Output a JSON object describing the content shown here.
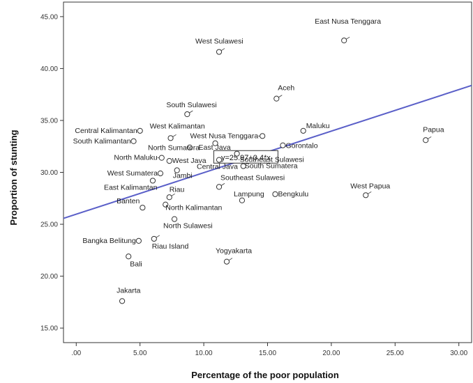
{
  "chart_data": {
    "type": "scatter",
    "xlabel": "Percentage of the poor population",
    "ylabel": "Proportion of stunting",
    "xlim": [
      -1.0,
      31.0
    ],
    "ylim": [
      13.6,
      46.4
    ],
    "xticks": [
      0,
      5,
      10,
      15,
      20,
      25,
      30
    ],
    "xtick_labels": [
      ".00",
      "5.00",
      "10.00",
      "15.00",
      "20.00",
      "25.00",
      "30.00"
    ],
    "yticks": [
      15,
      20,
      25,
      30,
      35,
      40,
      45
    ],
    "ytick_labels": [
      "15.00",
      "20.00",
      "25.00",
      "30.00",
      "35.00",
      "40.00",
      "45.00"
    ],
    "grid": false,
    "fit_line": {
      "intercept": 25.97,
      "slope": 0.4,
      "label": "y=25.97+0.4*x",
      "color": "#5a5fc8"
    },
    "points": [
      {
        "name": "East Nusa Tenggara",
        "x": 21.0,
        "y": 42.7
      },
      {
        "name": "West Sulawesi",
        "x": 11.2,
        "y": 41.6
      },
      {
        "name": "Aceh",
        "x": 15.7,
        "y": 37.1
      },
      {
        "name": "South Sulawesi",
        "x": 8.7,
        "y": 35.6
      },
      {
        "name": "Maluku",
        "x": 17.8,
        "y": 34.0
      },
      {
        "name": "Central Kalimantan",
        "x": 5.0,
        "y": 34.0
      },
      {
        "name": "West Kalimantan",
        "x": 7.4,
        "y": 33.3
      },
      {
        "name": "South Kalimantan",
        "x": 4.5,
        "y": 33.0
      },
      {
        "name": "West Nusa Tenggara",
        "x": 14.6,
        "y": 33.5
      },
      {
        "name": "Papua",
        "x": 27.4,
        "y": 33.1
      },
      {
        "name": "North Sumatera",
        "x": 8.9,
        "y": 32.4
      },
      {
        "name": "East Java",
        "x": 10.9,
        "y": 32.8
      },
      {
        "name": "Gorontalo",
        "x": 16.2,
        "y": 32.6
      },
      {
        "name": "Southeast Sulawesi",
        "x": 12.6,
        "y": 31.8
      },
      {
        "name": "North Maluku",
        "x": 6.7,
        "y": 31.4
      },
      {
        "name": "West Java",
        "x": 7.3,
        "y": 31.1
      },
      {
        "name": "Central Java",
        "x": 11.2,
        "y": 31.2
      },
      {
        "name": "South Sumatera",
        "x": 13.1,
        "y": 30.6
      },
      {
        "name": "Jambi",
        "x": 7.9,
        "y": 30.2
      },
      {
        "name": "West Sumatera",
        "x": 6.6,
        "y": 29.9
      },
      {
        "name": "East Kalimantan",
        "x": 6.0,
        "y": 29.2
      },
      {
        "name": "Southeast Sulawesi",
        "x": 11.2,
        "y": 28.6
      },
      {
        "name": "Lampung",
        "x": 13.0,
        "y": 27.3
      },
      {
        "name": "Bengkulu",
        "x": 15.6,
        "y": 27.9
      },
      {
        "name": "West Papua",
        "x": 22.7,
        "y": 27.8
      },
      {
        "name": "Riau",
        "x": 7.3,
        "y": 27.6
      },
      {
        "name": "Banten",
        "x": 5.2,
        "y": 26.6
      },
      {
        "name": "North Kalimantan",
        "x": 7.0,
        "y": 26.9
      },
      {
        "name": "North Sulawesi",
        "x": 7.7,
        "y": 25.5
      },
      {
        "name": "Bangka Belitung",
        "x": 4.9,
        "y": 23.4
      },
      {
        "name": "Riau Island",
        "x": 6.1,
        "y": 23.6
      },
      {
        "name": "Bali",
        "x": 4.1,
        "y": 21.9
      },
      {
        "name": "Yogyakarta",
        "x": 11.8,
        "y": 21.4
      },
      {
        "name": "Jakarta",
        "x": 3.6,
        "y": 17.6
      }
    ]
  }
}
